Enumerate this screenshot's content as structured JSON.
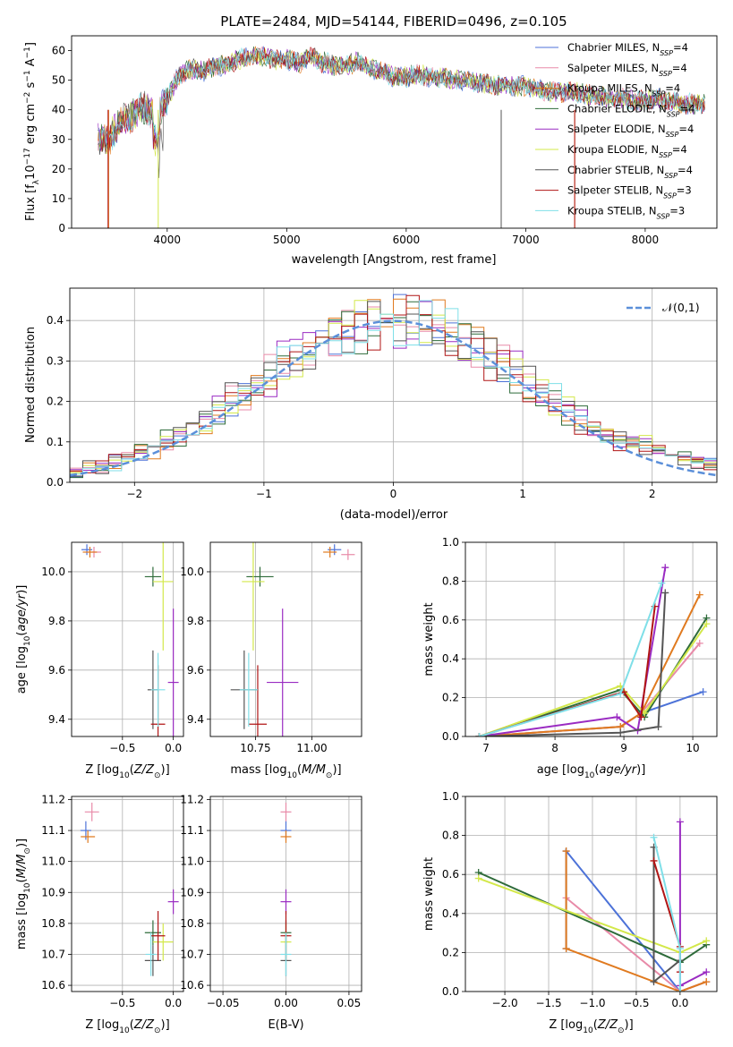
{
  "figure_title": "PLATE=2484, MJD=54144, FIBERID=0496, z=0.105",
  "models": [
    {
      "name": "Chabrier MILES",
      "n": "4",
      "color": "#4c72d8"
    },
    {
      "name": "Salpeter MILES",
      "n": "4",
      "color": "#e88aa8"
    },
    {
      "name": "Kroupa MILES",
      "n": "4",
      "color": "#e07a1f"
    },
    {
      "name": "Chabrier ELODIE",
      "n": "4",
      "color": "#2e6b3a"
    },
    {
      "name": "Salpeter ELODIE",
      "n": "4",
      "color": "#9a2bc2"
    },
    {
      "name": "Kroupa ELODIE",
      "n": "4",
      "color": "#d3e84a"
    },
    {
      "name": "Chabrier STELIB",
      "n": "4",
      "color": "#555555"
    },
    {
      "name": "Salpeter STELIB",
      "n": "3",
      "color": "#b01515"
    },
    {
      "name": "Kroupa STELIB",
      "n": "3",
      "color": "#7fdfe8"
    }
  ],
  "chart_data": [
    {
      "id": "spectrum",
      "type": "line",
      "title": "PLATE=2484, MJD=54144, FIBERID=0496, z=0.105",
      "xlabel": "wavelength [Angstrom, rest frame]",
      "ylabel": "Flux [f_λ 10^-17 erg cm^-2 s^-1 A^-1]",
      "xlim": [
        3200,
        8600
      ],
      "ylim": [
        0,
        65
      ],
      "xticks": [
        4000,
        5000,
        6000,
        7000,
        8000
      ],
      "yticks": [
        0,
        10,
        20,
        30,
        40,
        50,
        60
      ],
      "x": [
        3420,
        3500,
        3600,
        3700,
        3800,
        3900,
        4000,
        4100,
        4200,
        4300,
        4400,
        4500,
        4600,
        4700,
        4800,
        4900,
        5000,
        5100,
        5200,
        5300,
        5400,
        5500,
        5600,
        5700,
        5800,
        5900,
        6000,
        6100,
        6200,
        6300,
        6400,
        6500,
        6600,
        6700,
        6800,
        6900,
        7000,
        7100,
        7200,
        7300,
        7400,
        7500,
        7600,
        7700,
        7800,
        7900,
        8000,
        8100,
        8200,
        8300,
        8400
      ],
      "y": [
        31,
        29,
        36,
        38,
        41,
        38,
        44,
        52,
        54,
        53,
        55,
        55,
        57,
        58,
        58,
        57,
        57,
        56,
        58,
        56,
        55,
        55,
        56,
        54,
        53,
        51,
        51,
        52,
        51,
        51,
        50,
        50,
        49,
        49,
        48,
        48,
        48,
        47,
        46,
        46,
        46,
        45,
        45,
        44,
        44,
        43,
        43,
        44,
        43,
        42,
        42
      ],
      "grid": false,
      "legend": "top-right"
    },
    {
      "id": "residuals",
      "type": "step",
      "xlabel": "(data-model)/error",
      "ylabel": "Normed distribution",
      "xlim": [
        -2.5,
        2.5
      ],
      "ylim": [
        0,
        0.48
      ],
      "xticks": [
        -2,
        -1,
        0,
        1,
        2
      ],
      "yticks": [
        0.0,
        0.1,
        0.2,
        0.3,
        0.4
      ],
      "bin_edges_range": [
        -2.5,
        2.5
      ],
      "n_bins": 50,
      "reference_curve": {
        "name": "𝒩(0,1)",
        "mean": 0,
        "sigma": 1
      },
      "grid": true,
      "legend": "top-right"
    },
    {
      "id": "age_vs_Z",
      "type": "scatter",
      "xlabel": "Z [log10(Z/Z⊙)]",
      "ylabel": "age [log10(age/yr)]",
      "xlim": [
        -1.0,
        0.1
      ],
      "ylim": [
        9.33,
        10.12
      ],
      "xticks": [
        -0.5,
        0.0
      ],
      "yticks": [
        9.4,
        9.6,
        9.8,
        10.0
      ],
      "points": [
        {
          "model": 0,
          "x": -0.85,
          "y": 10.09,
          "xerr": 0.05,
          "yerr": 0.01
        },
        {
          "model": 1,
          "x": -0.78,
          "y": 10.08,
          "xerr": 0.07,
          "yerr": 0.01
        },
        {
          "model": 2,
          "x": -0.82,
          "y": 10.08,
          "xerr": 0.07,
          "yerr": 0.01
        },
        {
          "model": 3,
          "x": -0.2,
          "y": 9.98,
          "xerr": 0.08,
          "yerr": 0.04
        },
        {
          "model": 4,
          "x": 0.0,
          "y": 9.55,
          "xerr": 0.05,
          "yerr": 0.3
        },
        {
          "model": 5,
          "x": -0.1,
          "y": 9.96,
          "xerr": 0.1,
          "yerr": 0.28
        },
        {
          "model": 6,
          "x": -0.2,
          "y": 9.52,
          "xerr": 0.02,
          "yerr": 0.16
        },
        {
          "model": 7,
          "x": -0.15,
          "y": 9.38,
          "xerr": 0.07,
          "yerr": 0.24
        },
        {
          "model": 8,
          "x": -0.15,
          "y": 9.52,
          "xerr": 0.07,
          "yerr": 0.15
        }
      ],
      "grid": true
    },
    {
      "id": "age_vs_mass",
      "type": "scatter",
      "xlabel": "mass [log10(M/M⊙)]",
      "ylabel": "",
      "xlim": [
        10.55,
        11.22
      ],
      "ylim": [
        9.33,
        10.12
      ],
      "xticks": [
        10.75,
        11.0
      ],
      "yticks": [
        9.4,
        9.6,
        9.8,
        10.0
      ],
      "points": [
        {
          "model": 0,
          "x": 11.1,
          "y": 10.09,
          "xerr": 0.03,
          "yerr": 0.01
        },
        {
          "model": 1,
          "x": 11.16,
          "y": 10.07,
          "xerr": 0.03,
          "yerr": 0.02
        },
        {
          "model": 2,
          "x": 11.08,
          "y": 10.08,
          "xerr": 0.03,
          "yerr": 0.01
        },
        {
          "model": 3,
          "x": 10.77,
          "y": 9.98,
          "xerr": 0.06,
          "yerr": 0.04
        },
        {
          "model": 4,
          "x": 10.87,
          "y": 9.55,
          "xerr": 0.07,
          "yerr": 0.3
        },
        {
          "model": 5,
          "x": 10.74,
          "y": 9.96,
          "xerr": 0.05,
          "yerr": 0.28
        },
        {
          "model": 6,
          "x": 10.7,
          "y": 9.52,
          "xerr": 0.06,
          "yerr": 0.16
        },
        {
          "model": 7,
          "x": 10.76,
          "y": 9.38,
          "xerr": 0.04,
          "yerr": 0.24
        },
        {
          "model": 8,
          "x": 10.72,
          "y": 9.52,
          "xerr": 0.04,
          "yerr": 0.15
        }
      ],
      "grid": true
    },
    {
      "id": "weight_vs_age",
      "type": "line",
      "xlabel": "age [log10(age/yr)]",
      "ylabel": "mass weight",
      "xlim": [
        6.7,
        10.35
      ],
      "ylim": [
        0,
        1.0
      ],
      "xticks": [
        7,
        8,
        9,
        10
      ],
      "yticks": [
        0.0,
        0.2,
        0.4,
        0.6,
        0.8,
        1.0
      ],
      "series": [
        {
          "model": 0,
          "x": [
            6.9,
            8.95,
            9.25,
            10.15
          ],
          "y": [
            0.0,
            0.05,
            0.12,
            0.23
          ]
        },
        {
          "model": 1,
          "x": [
            6.9,
            8.95,
            9.25,
            10.1
          ],
          "y": [
            0.0,
            0.05,
            0.12,
            0.48
          ]
        },
        {
          "model": 2,
          "x": [
            6.9,
            8.95,
            9.25,
            10.1
          ],
          "y": [
            0.0,
            0.05,
            0.12,
            0.73
          ]
        },
        {
          "model": 3,
          "x": [
            6.9,
            8.95,
            9.3,
            10.2
          ],
          "y": [
            0.0,
            0.24,
            0.1,
            0.61
          ]
        },
        {
          "model": 4,
          "x": [
            6.9,
            8.9,
            9.2,
            9.6
          ],
          "y": [
            0.0,
            0.1,
            0.03,
            0.87
          ]
        },
        {
          "model": 5,
          "x": [
            6.9,
            8.95,
            9.3,
            10.2
          ],
          "y": [
            0.0,
            0.26,
            0.12,
            0.58
          ]
        },
        {
          "model": 6,
          "x": [
            6.9,
            8.95,
            9.5,
            9.6
          ],
          "y": [
            0.0,
            0.02,
            0.05,
            0.74
          ]
        },
        {
          "model": 7,
          "x": [
            6.9,
            9.0,
            9.25,
            9.45
          ],
          "y": [
            0.0,
            0.23,
            0.1,
            0.67
          ]
        },
        {
          "model": 8,
          "x": [
            6.9,
            8.95,
            9.55
          ],
          "y": [
            0.0,
            0.22,
            0.79
          ]
        }
      ],
      "grid": true
    },
    {
      "id": "mass_vs_Z",
      "type": "scatter",
      "xlabel": "Z [log10(Z/Z⊙)]",
      "ylabel": "mass [log10(M/M⊙)]",
      "xlim": [
        -1.0,
        0.1
      ],
      "ylim": [
        10.58,
        11.21
      ],
      "xticks": [
        -0.5,
        0.0
      ],
      "yticks": [
        10.6,
        10.7,
        10.8,
        10.9,
        11.0,
        11.1,
        11.2
      ],
      "points": [
        {
          "model": 0,
          "x": -0.86,
          "y": 11.1,
          "xerr": 0.05,
          "yerr": 0.03
        },
        {
          "model": 1,
          "x": -0.8,
          "y": 11.16,
          "xerr": 0.07,
          "yerr": 0.03
        },
        {
          "model": 2,
          "x": -0.84,
          "y": 11.08,
          "xerr": 0.07,
          "yerr": 0.02
        },
        {
          "model": 3,
          "x": -0.2,
          "y": 10.77,
          "xerr": 0.08,
          "yerr": 0.04
        },
        {
          "model": 4,
          "x": 0.0,
          "y": 10.87,
          "xerr": 0.05,
          "yerr": 0.04
        },
        {
          "model": 5,
          "x": -0.1,
          "y": 10.74,
          "xerr": 0.1,
          "yerr": 0.06
        },
        {
          "model": 6,
          "x": -0.2,
          "y": 10.68,
          "xerr": 0.08,
          "yerr": 0.05
        },
        {
          "model": 7,
          "x": -0.15,
          "y": 10.76,
          "xerr": 0.07,
          "yerr": 0.08
        },
        {
          "model": 8,
          "x": -0.22,
          "y": 10.7,
          "xerr": 0.02,
          "yerr": 0.07
        }
      ],
      "grid": true
    },
    {
      "id": "mass_vs_ebv",
      "type": "scatter",
      "xlabel": "E(B-V)",
      "ylabel": "",
      "xlim": [
        -0.06,
        0.06
      ],
      "ylim": [
        10.58,
        11.21
      ],
      "xticks": [
        -0.05,
        0.0,
        0.05
      ],
      "yticks": [
        10.6,
        10.7,
        10.8,
        10.9,
        11.0,
        11.1,
        11.2
      ],
      "points": [
        {
          "model": 0,
          "x": 0.0,
          "y": 11.1,
          "xerr": 0,
          "yerr": 0.03
        },
        {
          "model": 1,
          "x": 0.0,
          "y": 11.16,
          "xerr": 0,
          "yerr": 0.03
        },
        {
          "model": 2,
          "x": 0.0,
          "y": 11.08,
          "xerr": 0,
          "yerr": 0.02
        },
        {
          "model": 3,
          "x": 0.0,
          "y": 10.77,
          "xerr": 0,
          "yerr": 0.04
        },
        {
          "model": 4,
          "x": 0.0,
          "y": 10.87,
          "xerr": 0,
          "yerr": 0.04
        },
        {
          "model": 5,
          "x": 0.0,
          "y": 10.74,
          "xerr": 0,
          "yerr": 0.06
        },
        {
          "model": 6,
          "x": 0.0,
          "y": 10.68,
          "xerr": 0,
          "yerr": 0.05
        },
        {
          "model": 7,
          "x": 0.0,
          "y": 10.76,
          "xerr": 0,
          "yerr": 0.08
        },
        {
          "model": 8,
          "x": 0.0,
          "y": 10.7,
          "xerr": 0,
          "yerr": 0.07
        }
      ],
      "grid": true
    },
    {
      "id": "weight_vs_Z",
      "type": "line",
      "xlabel": "Z [log10(Z/Z⊙)]",
      "ylabel": "mass weight",
      "xlim": [
        -2.45,
        0.42
      ],
      "ylim": [
        0,
        1.0
      ],
      "xticks": [
        -2.0,
        -1.5,
        -1.0,
        -0.5,
        0.0
      ],
      "yticks": [
        0.0,
        0.2,
        0.4,
        0.6,
        0.8,
        1.0
      ],
      "series": [
        {
          "model": 0,
          "x": [
            -1.3,
            -1.3,
            0.0,
            0.3
          ],
          "y": [
            0.22,
            0.72,
            0.0,
            0.05
          ]
        },
        {
          "model": 1,
          "x": [
            -1.3,
            0.0,
            0.3
          ],
          "y": [
            0.48,
            0.0,
            0.05
          ]
        },
        {
          "model": 2,
          "x": [
            -1.3,
            -1.3,
            0.0,
            0.3
          ],
          "y": [
            0.72,
            0.22,
            0.0,
            0.05
          ]
        },
        {
          "model": 3,
          "x": [
            -2.3,
            0.0,
            0.3
          ],
          "y": [
            0.61,
            0.15,
            0.24
          ]
        },
        {
          "model": 4,
          "x": [
            0.0,
            0.0,
            0.3
          ],
          "y": [
            0.87,
            0.03,
            0.1
          ]
        },
        {
          "model": 5,
          "x": [
            -2.3,
            0.0,
            0.3
          ],
          "y": [
            0.58,
            0.2,
            0.26
          ]
        },
        {
          "model": 6,
          "x": [
            -0.3,
            -0.3,
            0.0
          ],
          "y": [
            0.74,
            0.05,
            0.16
          ]
        },
        {
          "model": 7,
          "x": [
            -0.3,
            0.0,
            0.0
          ],
          "y": [
            0.67,
            0.23,
            0.1
          ]
        },
        {
          "model": 8,
          "x": [
            -0.3,
            0.0,
            0.0
          ],
          "y": [
            0.79,
            0.22,
            0.0
          ]
        }
      ],
      "grid": true
    }
  ]
}
